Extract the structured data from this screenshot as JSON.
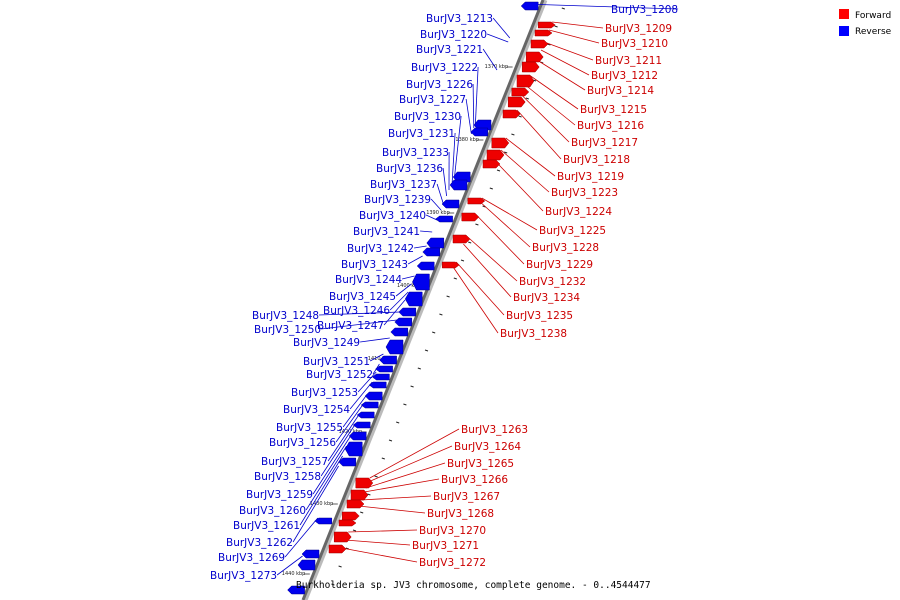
{
  "legend": [
    {
      "label": "Forward",
      "color": "#ff0000"
    },
    {
      "label": "Reverse",
      "color": "#0000ff"
    }
  ],
  "caption": "Burkholderia sp. JV3 chromosome, complete genome. - 0..4544477",
  "scale_ticks": [
    "1370 kbp",
    "1380 kbp",
    "1390 kbp",
    "1400 kbp",
    "1410 kbp",
    "1420 kbp",
    "1430 kbp",
    "1440 kbp"
  ],
  "forward_genes": [
    "BurJV3_1209",
    "BurJV3_1210",
    "BurJV3_1211",
    "BurJV3_1212",
    "BurJV3_1214",
    "BurJV3_1215",
    "BurJV3_1216",
    "BurJV3_1217",
    "BurJV3_1218",
    "BurJV3_1219",
    "BurJV3_1223",
    "BurJV3_1224",
    "BurJV3_1225",
    "BurJV3_1228",
    "BurJV3_1229",
    "BurJV3_1232",
    "BurJV3_1234",
    "BurJV3_1235",
    "BurJV3_1238",
    "BurJV3_1263",
    "BurJV3_1264",
    "BurJV3_1265",
    "BurJV3_1266",
    "BurJV3_1267",
    "BurJV3_1268",
    "BurJV3_1270",
    "BurJV3_1271",
    "BurJV3_1272"
  ],
  "reverse_genes": [
    "BurJV3_1208",
    "BurJV3_1213",
    "BurJV3_1220",
    "BurJV3_1221",
    "BurJV3_1222",
    "BurJV3_1226",
    "BurJV3_1227",
    "BurJV3_1230",
    "BurJV3_1231",
    "BurJV3_1233",
    "BurJV3_1236",
    "BurJV3_1237",
    "BurJV3_1239",
    "BurJV3_1240",
    "BurJV3_1241",
    "BurJV3_1242",
    "BurJV3_1243",
    "BurJV3_1244",
    "BurJV3_1245",
    "BurJV3_1246",
    "BurJV3_1247",
    "BurJV3_1248",
    "BurJV3_1250",
    "BurJV3_1249",
    "BurJV3_1251",
    "BurJV3_1252",
    "BurJV3_1253",
    "BurJV3_1254",
    "BurJV3_1255",
    "BurJV3_1256",
    "BurJV3_1257",
    "BurJV3_1258",
    "BurJV3_1259",
    "BurJV3_1260",
    "BurJV3_1261",
    "BurJV3_1262",
    "BurJV3_1269",
    "BurJV3_1273"
  ]
}
